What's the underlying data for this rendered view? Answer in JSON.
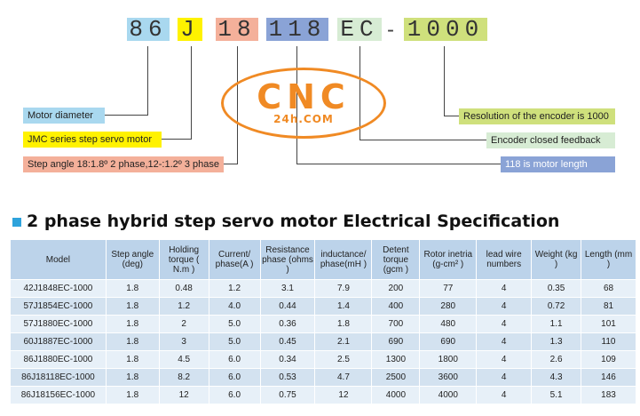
{
  "code": {
    "parts": [
      {
        "text": "86",
        "color": "#a9d8ef"
      },
      {
        "text": "J",
        "color": "#fff200"
      },
      {
        "text": "18",
        "color": "#f4b09a"
      },
      {
        "text": "118",
        "color": "#8aa3d6"
      },
      {
        "text": "EC",
        "color": "#d7ecd4"
      },
      {
        "text": "-",
        "color": ""
      },
      {
        "text": "1000",
        "color": "#cfe07c"
      }
    ]
  },
  "legend": {
    "motor_diameter": "Motor diameter",
    "jmc_series": "JMC series step servo motor",
    "step_angle": "Step angle 18:1.8º 2 phase,12-:1.2º 3 phase",
    "resolution": "Resolution of the encoder is 1000",
    "encoder": "Encoder closed feedback",
    "motor_length": "118 is motor length"
  },
  "logo": {
    "main": "CNC",
    "sub": "24h.COM"
  },
  "title": "2 phase hybrid step servo motor Electrical Specification",
  "table": {
    "headers": [
      "Model",
      "Step angle (deg)",
      "Holding torque ( N.m )",
      "Current/ phase(A )",
      "Resistance phase (ohms )",
      "inductance/ phase(mH )",
      "Detent torque (gcm )",
      "Rotor inetria (g-cm² )",
      "lead wire numbers",
      "Weight (kg )",
      "Length (mm )"
    ],
    "rows": [
      [
        "42J1848EC-1000",
        "1.8",
        "0.48",
        "1.2",
        "3.1",
        "7.9",
        "200",
        "77",
        "4",
        "0.35",
        "68"
      ],
      [
        "57J1854EC-1000",
        "1.8",
        "1.2",
        "4.0",
        "0.44",
        "1.4",
        "400",
        "280",
        "4",
        "0.72",
        "81"
      ],
      [
        "57J1880EC-1000",
        "1.8",
        "2",
        "5.0",
        "0.36",
        "1.8",
        "700",
        "480",
        "4",
        "1.1",
        "101"
      ],
      [
        "60J1887EC-1000",
        "1.8",
        "3",
        "5.0",
        "0.45",
        "2.1",
        "690",
        "690",
        "4",
        "1.3",
        "110"
      ],
      [
        "86J1880EC-1000",
        "1.8",
        "4.5",
        "6.0",
        "0.34",
        "2.5",
        "1300",
        "1800",
        "4",
        "2.6",
        "109"
      ],
      [
        "86J18118EC-1000",
        "1.8",
        "8.2",
        "6.0",
        "0.53",
        "4.7",
        "2500",
        "3600",
        "4",
        "4.3",
        "146"
      ],
      [
        "86J18156EC-1000",
        "1.8",
        "12",
        "6.0",
        "0.75",
        "12",
        "4000",
        "4000",
        "4",
        "5.1",
        "183"
      ]
    ]
  },
  "colors": {
    "motor_diameter_bg": "#a9d8ef",
    "jmc_bg": "#fff200",
    "step_angle_bg": "#f4b09a",
    "resolution_bg": "#cfe07c",
    "encoder_bg": "#d7ecd4",
    "length_bg": "#8aa3d6",
    "logo": "#f08a24",
    "table_header": "#bcd3ea"
  }
}
